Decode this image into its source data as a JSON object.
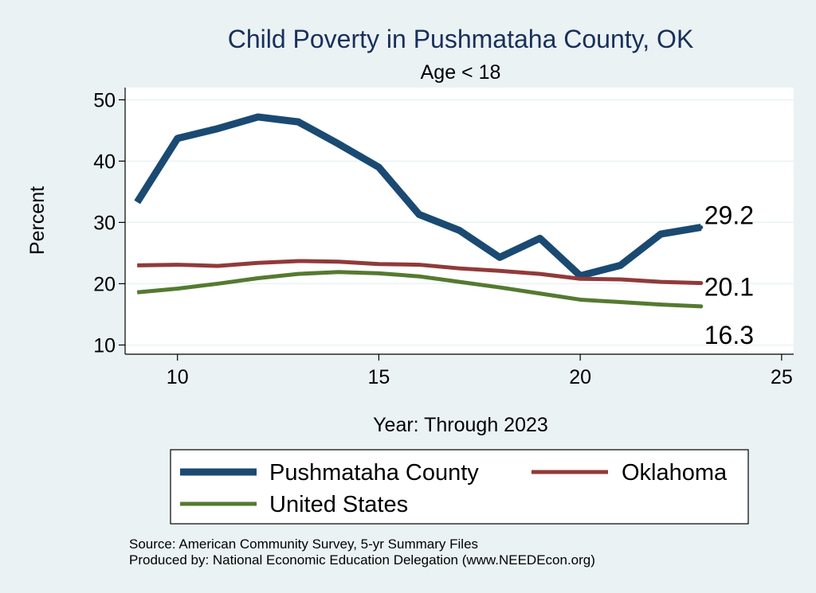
{
  "chart_data": {
    "type": "line",
    "title": "Child Poverty in Pushmataha County, OK",
    "subtitle": "Age < 18",
    "xlabel": "Year: Through 2023",
    "ylabel": "Percent",
    "xlim": [
      8.7,
      25.3
    ],
    "ylim": [
      8.5,
      52
    ],
    "xticks": [
      10,
      15,
      20,
      25
    ],
    "yticks": [
      10,
      20,
      30,
      40,
      50
    ],
    "grid": true,
    "legend_position": "bottom",
    "x": [
      9,
      10,
      11,
      12,
      13,
      14,
      15,
      16,
      17,
      18,
      19,
      20,
      21,
      22,
      23
    ],
    "series": [
      {
        "name": "Pushmataha County",
        "color": "#1a4a72",
        "width": 9,
        "values": [
          33.3,
          43.7,
          45.3,
          47.2,
          46.4,
          42.8,
          39.0,
          31.3,
          28.7,
          24.3,
          27.4,
          21.3,
          23.0,
          28.1,
          29.2
        ],
        "end_label": "29.2"
      },
      {
        "name": "Oklahoma",
        "color": "#913a3a",
        "width": 5,
        "values": [
          23.0,
          23.1,
          22.9,
          23.4,
          23.7,
          23.6,
          23.2,
          23.1,
          22.5,
          22.1,
          21.6,
          20.8,
          20.7,
          20.3,
          20.1
        ],
        "end_label": "20.1"
      },
      {
        "name": "United States",
        "color": "#557a30",
        "width": 5,
        "values": [
          18.6,
          19.2,
          20.0,
          20.9,
          21.6,
          21.9,
          21.7,
          21.2,
          20.3,
          19.4,
          18.4,
          17.4,
          17.0,
          16.6,
          16.3
        ],
        "end_label": "16.3"
      }
    ]
  },
  "notes": {
    "source": "Source: American Community Survey, 5-yr Summary Files",
    "produced": "Produced by: National Economic Education Delegation (www.NEEDEcon.org)"
  }
}
